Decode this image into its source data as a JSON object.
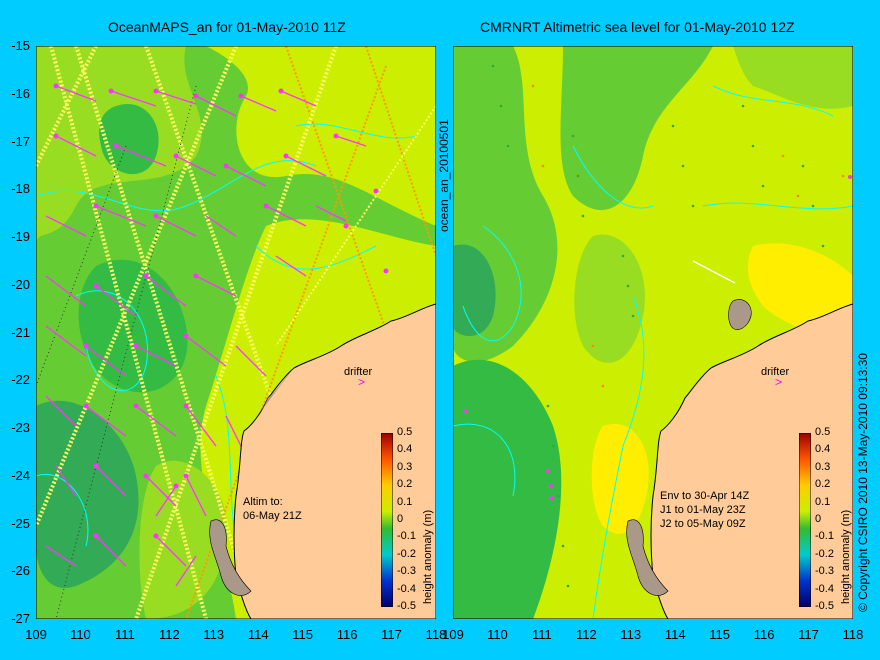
{
  "panels": [
    {
      "id": "left",
      "title": "OceanMAPS_an for 01-May-2010 11Z",
      "side_label": "ocean_an_20100501",
      "altim_note": [
        "Altim to:",
        "06-May 21Z"
      ],
      "drifter_label": "drifter"
    },
    {
      "id": "right",
      "title": "CMRNRT Altimetric sea level  for 01-May-2010 12Z",
      "env_note": [
        "Env to 30-Apr 14Z",
        "J1 to 01-May 23Z",
        "J2 to 05-May 09Z"
      ],
      "drifter_label": "drifter"
    }
  ],
  "axes": {
    "lon_ticks": [
      "109",
      "110",
      "111",
      "112",
      "113",
      "114",
      "115",
      "116",
      "117",
      "118"
    ],
    "lat_ticks": [
      "-15",
      "-16",
      "-17",
      "-18",
      "-19",
      "-20",
      "-21",
      "-22",
      "-23",
      "-24",
      "-25",
      "-26",
      "-27"
    ],
    "lon_range": [
      109,
      118
    ],
    "lat_range": [
      -15,
      -27
    ]
  },
  "colorbar": {
    "label": "height anomaly (m)",
    "ticks": [
      "0.5",
      "0.4",
      "0.3",
      "0.2",
      "0.1",
      "0",
      "-0.1",
      "-0.2",
      "-0.3",
      "-0.4",
      "-0.5"
    ]
  },
  "copyright": "© Copyright CSIRO 2010  13-May-2010 09:13:30",
  "colors": {
    "background": "#00ccff",
    "land": "#ffcc99",
    "field_green": "#66cc33",
    "field_yellow": "#ccee00",
    "contour": "#00ffff",
    "vector": "#ff00ff",
    "track_yellow": "#ffff00",
    "track_orange": "#ff8800"
  }
}
